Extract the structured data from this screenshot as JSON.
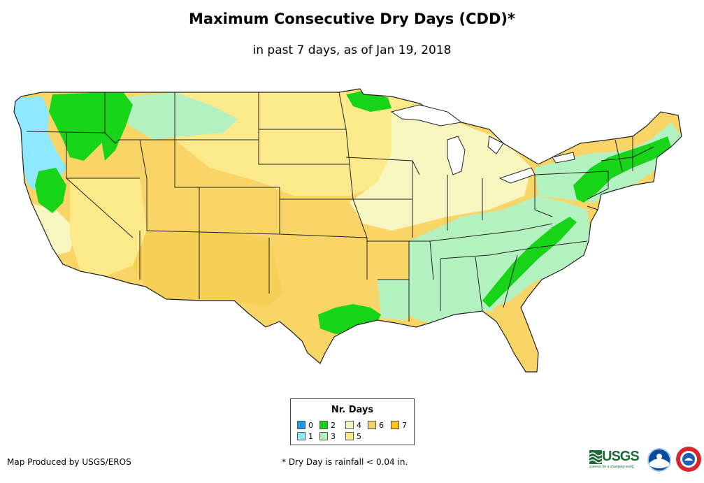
{
  "title": "Maximum Consecutive Dry Days (CDD)*",
  "subtitle": "in past 7 days, as of Jan 19, 2018",
  "legend": {
    "title": "Nr. Days",
    "items": [
      {
        "label": "0",
        "color": "#1f9ae6"
      },
      {
        "label": "1",
        "color": "#8ee8ff"
      },
      {
        "label": "2",
        "color": "#18d418"
      },
      {
        "label": "3",
        "color": "#b3f2c0"
      },
      {
        "label": "4",
        "color": "#f8f6c0"
      },
      {
        "label": "5",
        "color": "#fbe98a"
      },
      {
        "label": "6",
        "color": "#f8d566"
      },
      {
        "label": "7",
        "color": "#fcc41a"
      }
    ]
  },
  "credit": "Map Produced by USGS/EROS",
  "footnote": "* Dry Day is rainfall < 0.04 in.",
  "logos": {
    "usgs": "USGS",
    "usgs_tagline": "science for a changing world",
    "noaa": "noaa",
    "nws": "NATIONAL WEATHER SERVICE"
  }
}
